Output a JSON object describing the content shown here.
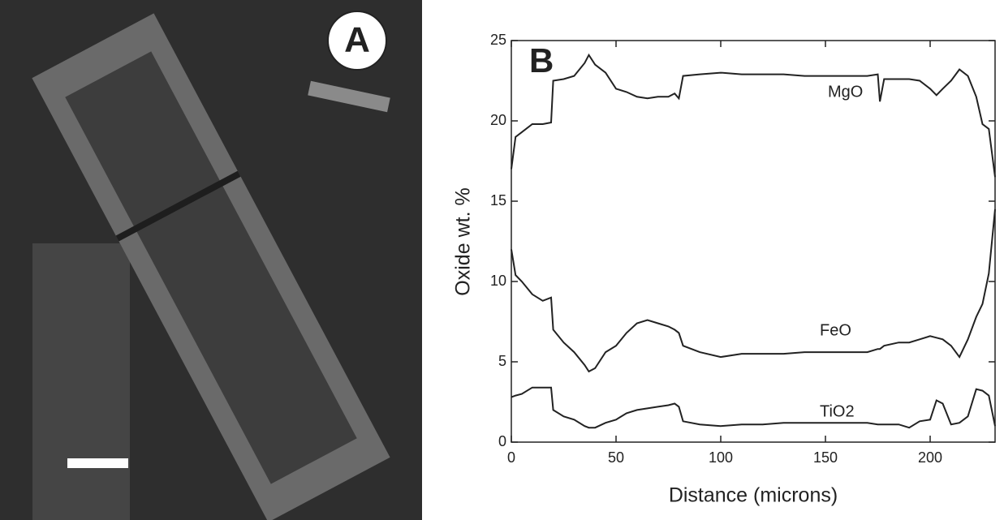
{
  "photo": {
    "label": "A"
  },
  "chart_data": {
    "type": "line",
    "panel_label": "B",
    "x_label": "Distance (microns)",
    "y_label": "Oxide wt. %",
    "x": [
      0,
      2,
      5,
      10,
      15,
      19,
      20,
      25,
      30,
      35,
      37,
      40,
      45,
      50,
      55,
      60,
      65,
      70,
      75,
      78,
      80,
      82,
      90,
      100,
      110,
      120,
      130,
      140,
      150,
      160,
      170,
      175,
      176,
      178,
      185,
      190,
      195,
      200,
      203,
      206,
      210,
      214,
      218,
      222,
      225,
      228,
      231
    ],
    "series": [
      {
        "name": "MgO",
        "color": "#222222",
        "values": [
          17,
          19,
          19.3,
          19.8,
          19.8,
          19.9,
          22.5,
          22.6,
          22.8,
          23.6,
          24.1,
          23.5,
          23.0,
          22.0,
          21.8,
          21.5,
          21.4,
          21.5,
          21.5,
          21.7,
          21.4,
          22.8,
          22.9,
          23.0,
          22.9,
          22.9,
          22.9,
          22.8,
          22.8,
          22.8,
          22.8,
          22.9,
          21.2,
          22.6,
          22.6,
          22.6,
          22.5,
          22.0,
          21.6,
          22.0,
          22.5,
          23.2,
          22.8,
          21.5,
          19.8,
          19.5,
          16.5
        ]
      },
      {
        "name": "FeO",
        "color": "#222222",
        "values": [
          12,
          10.4,
          10.0,
          9.2,
          8.8,
          9.0,
          7.0,
          6.2,
          5.6,
          4.8,
          4.4,
          4.6,
          5.6,
          6.0,
          6.8,
          7.4,
          7.6,
          7.4,
          7.2,
          7.0,
          6.8,
          6.0,
          5.6,
          5.3,
          5.5,
          5.5,
          5.5,
          5.6,
          5.6,
          5.6,
          5.6,
          5.8,
          5.8,
          6.0,
          6.2,
          6.2,
          6.4,
          6.6,
          6.5,
          6.4,
          6.0,
          5.3,
          6.4,
          7.8,
          8.6,
          10.5,
          14.5
        ]
      },
      {
        "name": "TiO2",
        "color": "#222222",
        "values": [
          2.8,
          2.9,
          3.0,
          3.4,
          3.4,
          3.4,
          2.0,
          1.6,
          1.4,
          1.0,
          0.9,
          0.9,
          1.2,
          1.4,
          1.8,
          2.0,
          2.1,
          2.2,
          2.3,
          2.4,
          2.2,
          1.3,
          1.1,
          1.0,
          1.1,
          1.1,
          1.2,
          1.2,
          1.2,
          1.2,
          1.2,
          1.1,
          1.1,
          1.1,
          1.1,
          0.9,
          1.3,
          1.4,
          2.6,
          2.4,
          1.1,
          1.2,
          1.6,
          3.3,
          3.2,
          2.9,
          1.0
        ]
      }
    ],
    "xlim": [
      0,
      231
    ],
    "ylim": [
      0,
      25
    ],
    "xticks": [
      0,
      50,
      100,
      150,
      200
    ],
    "yticks": [
      0,
      5,
      10,
      15,
      20,
      25
    ]
  }
}
